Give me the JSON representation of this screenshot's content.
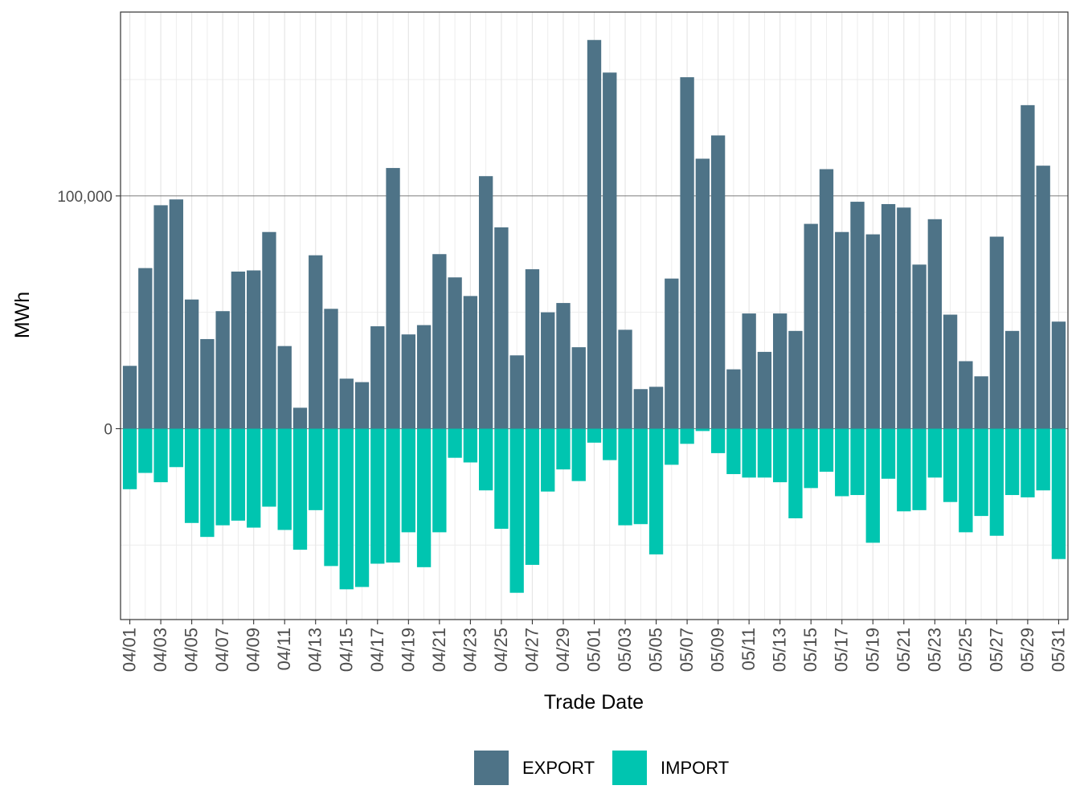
{
  "chart_data": {
    "type": "bar",
    "stacked": true,
    "xlabel": "Trade Date",
    "ylabel": "MWh",
    "ylim": [
      -82000,
      179000
    ],
    "yticks": [
      0,
      100000
    ],
    "ytick_labels": [
      "0",
      "100,000"
    ],
    "grid": true,
    "legend_position": "bottom",
    "categories": [
      "04/01",
      "04/02",
      "04/03",
      "04/04",
      "04/05",
      "04/06",
      "04/07",
      "04/08",
      "04/09",
      "04/10",
      "04/11",
      "04/12",
      "04/13",
      "04/14",
      "04/15",
      "04/16",
      "04/17",
      "04/18",
      "04/19",
      "04/20",
      "04/21",
      "04/22",
      "04/23",
      "04/24",
      "04/25",
      "04/26",
      "04/27",
      "04/28",
      "04/29",
      "04/30",
      "05/01",
      "05/02",
      "05/03",
      "05/04",
      "05/05",
      "05/06",
      "05/07",
      "05/08",
      "05/09",
      "05/10",
      "05/11",
      "05/12",
      "05/13",
      "05/14",
      "05/15",
      "05/16",
      "05/17",
      "05/18",
      "05/19",
      "05/20",
      "05/21",
      "05/22",
      "05/23",
      "05/24",
      "05/25",
      "05/26",
      "05/27",
      "05/28",
      "05/29",
      "05/30",
      "05/31"
    ],
    "xtick_labels": [
      "04/01",
      "04/03",
      "04/05",
      "04/07",
      "04/09",
      "04/11",
      "04/13",
      "04/15",
      "04/17",
      "04/19",
      "04/21",
      "04/23",
      "04/25",
      "04/27",
      "04/29",
      "05/01",
      "05/03",
      "05/05",
      "05/07",
      "05/09",
      "05/11",
      "05/13",
      "05/15",
      "05/17",
      "05/19",
      "05/21",
      "05/23",
      "05/25",
      "05/27",
      "05/29",
      "05/31"
    ],
    "series": [
      {
        "name": "EXPORT",
        "color": "#4e7387",
        "values": [
          27000,
          69000,
          96000,
          98500,
          55500,
          38500,
          50500,
          67500,
          68000,
          84500,
          35500,
          9000,
          74500,
          51500,
          21500,
          20000,
          44000,
          112000,
          40500,
          44500,
          75000,
          65000,
          57000,
          108500,
          86500,
          31500,
          68500,
          50000,
          54000,
          35000,
          167000,
          153000,
          42500,
          17000,
          18000,
          64500,
          151000,
          116000,
          126000,
          25500,
          49500,
          33000,
          49500,
          42000,
          88000,
          111500,
          84500,
          97500,
          83500,
          96500,
          95000,
          70500,
          90000,
          49000,
          29000,
          22500,
          82500,
          42000,
          139000,
          113000,
          46000
        ]
      },
      {
        "name": "IMPORT",
        "color": "#00c5b0",
        "values": [
          -26000,
          -19000,
          -23000,
          -16500,
          -40500,
          -46500,
          -41500,
          -39500,
          -42500,
          -33500,
          -43500,
          -52000,
          -35000,
          -59000,
          -69000,
          -68000,
          -58000,
          -57500,
          -44500,
          -59500,
          -44500,
          -12500,
          -14500,
          -26500,
          -43000,
          -70500,
          -58500,
          -27000,
          -17500,
          -22500,
          -6000,
          -13500,
          -41500,
          -41000,
          -54000,
          -15500,
          -6500,
          -1000,
          -10500,
          -19500,
          -21000,
          -21000,
          -23000,
          -38500,
          -25500,
          -18500,
          -29000,
          -28500,
          -49000,
          -21500,
          -35500,
          -35000,
          -21000,
          -31500,
          -44500,
          -37500,
          -46000,
          -28500,
          -29500,
          -26500,
          -56000
        ]
      }
    ]
  },
  "legend": {
    "items": [
      {
        "label": "EXPORT",
        "color": "#4e7387"
      },
      {
        "label": "IMPORT",
        "color": "#00c5b0"
      }
    ]
  }
}
